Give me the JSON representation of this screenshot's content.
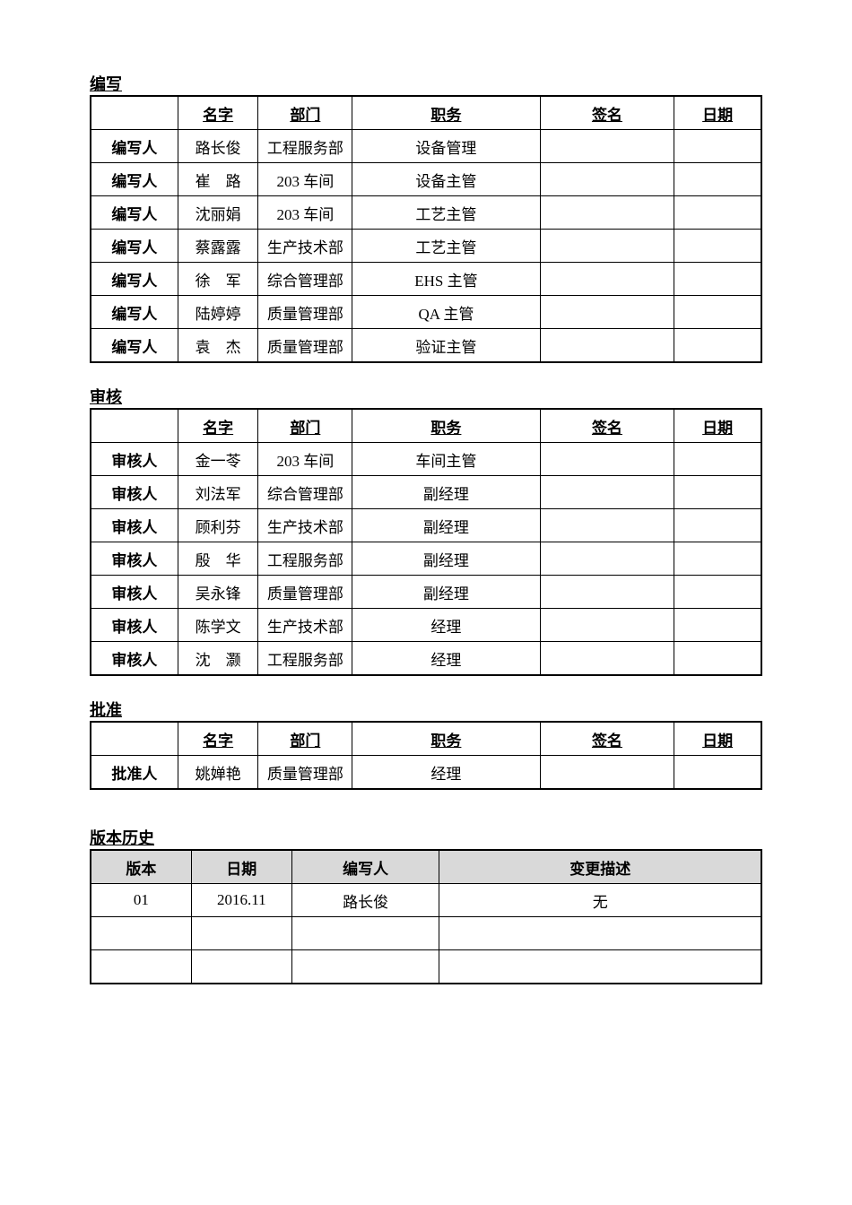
{
  "sections": {
    "write": {
      "title": "编写"
    },
    "review": {
      "title": "审核"
    },
    "approve": {
      "title": "批准"
    },
    "history": {
      "title": "版本历史"
    }
  },
  "sig_headers": {
    "role": "",
    "name": "名字",
    "dept": "部门",
    "job": "职务",
    "sign": "签名",
    "date": "日期"
  },
  "hist_headers": {
    "version": "版本",
    "date": "日期",
    "author": "编写人",
    "desc": "变更描述"
  },
  "write_rows": [
    {
      "role": "编写人",
      "name": "路长俊",
      "dept": "工程服务部",
      "job": "设备管理",
      "sign": "",
      "date": ""
    },
    {
      "role": "编写人",
      "name": "崔　路",
      "dept": "203 车间",
      "job": "设备主管",
      "sign": "",
      "date": ""
    },
    {
      "role": "编写人",
      "name": "沈丽娟",
      "dept": "203 车间",
      "job": "工艺主管",
      "sign": "",
      "date": ""
    },
    {
      "role": "编写人",
      "name": "蔡露露",
      "dept": "生产技术部",
      "job": "工艺主管",
      "sign": "",
      "date": ""
    },
    {
      "role": "编写人",
      "name": "徐　军",
      "dept": "综合管理部",
      "job": "EHS 主管",
      "sign": "",
      "date": ""
    },
    {
      "role": "编写人",
      "name": "陆婷婷",
      "dept": "质量管理部",
      "job": "QA 主管",
      "sign": "",
      "date": ""
    },
    {
      "role": "编写人",
      "name": "袁　杰",
      "dept": "质量管理部",
      "job": "验证主管",
      "sign": "",
      "date": ""
    }
  ],
  "review_rows": [
    {
      "role": "审核人",
      "name": "金一苓",
      "dept": "203 车间",
      "job": "车间主管",
      "sign": "",
      "date": ""
    },
    {
      "role": "审核人",
      "name": "刘法军",
      "dept": "综合管理部",
      "job": "副经理",
      "sign": "",
      "date": ""
    },
    {
      "role": "审核人",
      "name": "顾利芬",
      "dept": "生产技术部",
      "job": "副经理",
      "sign": "",
      "date": ""
    },
    {
      "role": "审核人",
      "name": "殷　华",
      "dept": "工程服务部",
      "job": "副经理",
      "sign": "",
      "date": ""
    },
    {
      "role": "审核人",
      "name": "吴永锋",
      "dept": "质量管理部",
      "job": "副经理",
      "sign": "",
      "date": ""
    },
    {
      "role": "审核人",
      "name": "陈学文",
      "dept": "生产技术部",
      "job": "经理",
      "sign": "",
      "date": ""
    },
    {
      "role": "审核人",
      "name": "沈　灏",
      "dept": "工程服务部",
      "job": "经理",
      "sign": "",
      "date": ""
    }
  ],
  "approve_rows": [
    {
      "role": "批准人",
      "name": "姚婵艳",
      "dept": "质量管理部",
      "job": "经理",
      "sign": "",
      "date": ""
    }
  ],
  "history_rows": [
    {
      "version": "01",
      "date": "2016.11",
      "author": "路长俊",
      "desc": "无"
    },
    {
      "version": "",
      "date": "",
      "author": "",
      "desc": ""
    },
    {
      "version": "",
      "date": "",
      "author": "",
      "desc": ""
    }
  ]
}
